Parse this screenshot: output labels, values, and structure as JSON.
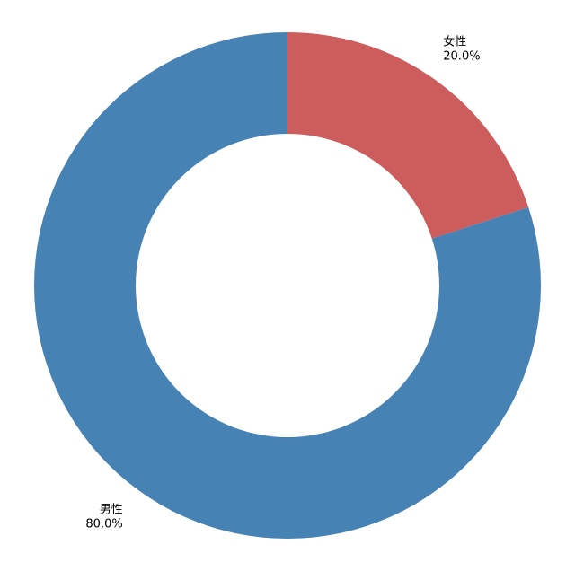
{
  "chart_data": {
    "type": "donut",
    "categories": [
      "女性",
      "男性"
    ],
    "values": [
      20,
      80
    ],
    "value_labels": [
      "20.0%",
      "80.0%"
    ],
    "colors": [
      "#cd5c5c",
      "#4682b4"
    ]
  }
}
